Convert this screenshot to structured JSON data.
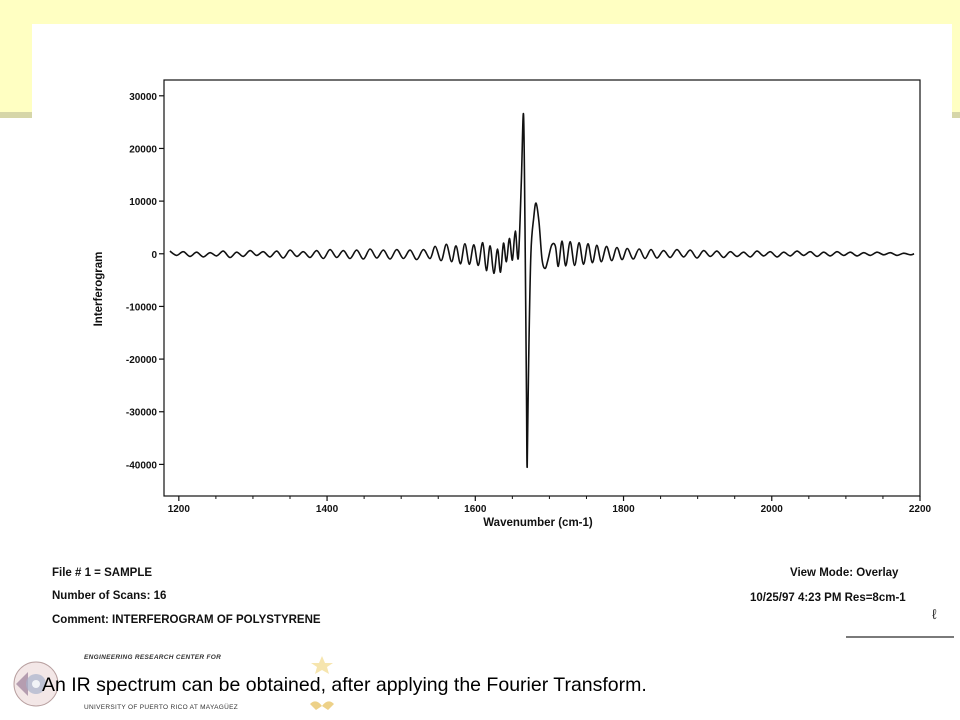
{
  "slide": {
    "caption": "An IR spectrum can be obtained, after applying the Fourier Transform.",
    "footer": {
      "line1": "ENGINEERING RESEARCH CENTER FOR",
      "line2": "UNIVERSITY OF PUERTO RICO AT MAYAGÜEZ"
    },
    "colors": {
      "band": "#ffffc2",
      "band_line": "#d6d6a8"
    }
  },
  "scan_info": {
    "file": "File # 1 = SAMPLE",
    "scans": "Number of Scans: 16",
    "comment": "Comment: INTERFEROGRAM OF POLYSTYRENE",
    "view_mode": "View Mode: Overlay",
    "timestamp": "10/25/97  4:23 PM  Res=8cm-1"
  },
  "chart_data": {
    "type": "line",
    "title": "",
    "xlabel": "Wavenumber (cm-1)",
    "ylabel": "Interferogram",
    "xlim": [
      1180,
      2200
    ],
    "ylim": [
      -46000,
      33000
    ],
    "x_ticks": [
      1200,
      1400,
      1600,
      1800,
      2000,
      2200
    ],
    "x_tick_labels": [
      "1200",
      "1400",
      "1600",
      "1800",
      "2000",
      "2200"
    ],
    "y_ticks": [
      30000,
      20000,
      10000,
      0,
      -10000,
      -20000,
      -30000,
      -40000
    ],
    "y_tick_labels": [
      "30000",
      "20000",
      "10000",
      "0",
      "-10000",
      "-20000",
      "-30000",
      "-40000"
    ],
    "grid": false,
    "series": [
      {
        "name": "",
        "color": "#111111",
        "points": [
          [
            1188,
            500
          ],
          [
            1197,
            -300
          ],
          [
            1206,
            400
          ],
          [
            1215,
            -500
          ],
          [
            1224,
            300
          ],
          [
            1233,
            -600
          ],
          [
            1242,
            200
          ],
          [
            1251,
            -400
          ],
          [
            1260,
            500
          ],
          [
            1269,
            -700
          ],
          [
            1278,
            300
          ],
          [
            1287,
            -500
          ],
          [
            1296,
            600
          ],
          [
            1305,
            -300
          ],
          [
            1314,
            400
          ],
          [
            1323,
            -600
          ],
          [
            1332,
            500
          ],
          [
            1341,
            -800
          ],
          [
            1350,
            700
          ],
          [
            1359,
            -500
          ],
          [
            1368,
            400
          ],
          [
            1377,
            -700
          ],
          [
            1386,
            600
          ],
          [
            1395,
            -900
          ],
          [
            1404,
            800
          ],
          [
            1413,
            -700
          ],
          [
            1422,
            600
          ],
          [
            1431,
            -900
          ],
          [
            1440,
            700
          ],
          [
            1449,
            -1000
          ],
          [
            1458,
            900
          ],
          [
            1467,
            -800
          ],
          [
            1476,
            700
          ],
          [
            1485,
            -1000
          ],
          [
            1494,
            800
          ],
          [
            1503,
            -900
          ],
          [
            1512,
            700
          ],
          [
            1521,
            -1100
          ],
          [
            1530,
            800
          ],
          [
            1539,
            -900
          ],
          [
            1546,
            1400
          ],
          [
            1554,
            -1300
          ],
          [
            1561,
            1800
          ],
          [
            1568,
            -1500
          ],
          [
            1574,
            1500
          ],
          [
            1580,
            -1900
          ],
          [
            1586,
            1900
          ],
          [
            1592,
            -2000
          ],
          [
            1598,
            1700
          ],
          [
            1604,
            -2200
          ],
          [
            1610,
            2100
          ],
          [
            1615,
            -3200
          ],
          [
            1620,
            1500
          ],
          [
            1625,
            -3700
          ],
          [
            1630,
            900
          ],
          [
            1634,
            -3500
          ],
          [
            1638,
            2000
          ],
          [
            1642,
            -1500
          ],
          [
            1646,
            2900
          ],
          [
            1650,
            -1200
          ],
          [
            1654,
            4300
          ],
          [
            1658,
            -800
          ],
          [
            1662,
            13000
          ],
          [
            1665,
            26500
          ],
          [
            1667,
            5000
          ],
          [
            1669,
            -25000
          ],
          [
            1670,
            -40500
          ],
          [
            1672,
            -20000
          ],
          [
            1675,
            0
          ],
          [
            1679,
            7000
          ],
          [
            1682,
            9600
          ],
          [
            1686,
            6000
          ],
          [
            1690,
            -1000
          ],
          [
            1694,
            -2800
          ],
          [
            1698,
            -1200
          ],
          [
            1703,
            1600
          ],
          [
            1708,
            1500
          ],
          [
            1712,
            -2400
          ],
          [
            1717,
            2400
          ],
          [
            1722,
            -2300
          ],
          [
            1728,
            2300
          ],
          [
            1734,
            -2200
          ],
          [
            1740,
            2100
          ],
          [
            1746,
            -2000
          ],
          [
            1752,
            1900
          ],
          [
            1758,
            -1700
          ],
          [
            1764,
            1600
          ],
          [
            1770,
            -1500
          ],
          [
            1777,
            1400
          ],
          [
            1784,
            -1300
          ],
          [
            1791,
            1200
          ],
          [
            1798,
            -1100
          ],
          [
            1805,
            1000
          ],
          [
            1813,
            -1000
          ],
          [
            1821,
            900
          ],
          [
            1829,
            -900
          ],
          [
            1837,
            800
          ],
          [
            1845,
            -800
          ],
          [
            1854,
            600
          ],
          [
            1863,
            -700
          ],
          [
            1872,
            800
          ],
          [
            1881,
            -600
          ],
          [
            1890,
            700
          ],
          [
            1899,
            -800
          ],
          [
            1908,
            600
          ],
          [
            1917,
            -500
          ],
          [
            1926,
            500
          ],
          [
            1935,
            -700
          ],
          [
            1944,
            400
          ],
          [
            1953,
            -500
          ],
          [
            1962,
            300
          ],
          [
            1971,
            -600
          ],
          [
            1980,
            500
          ],
          [
            1989,
            -400
          ],
          [
            1998,
            400
          ],
          [
            2007,
            -600
          ],
          [
            2016,
            300
          ],
          [
            2025,
            -400
          ],
          [
            2034,
            500
          ],
          [
            2043,
            -300
          ],
          [
            2052,
            400
          ],
          [
            2061,
            -500
          ],
          [
            2070,
            300
          ],
          [
            2079,
            -400
          ],
          [
            2088,
            400
          ],
          [
            2097,
            -300
          ],
          [
            2106,
            300
          ],
          [
            2115,
            -400
          ],
          [
            2124,
            200
          ],
          [
            2133,
            -300
          ],
          [
            2142,
            300
          ],
          [
            2151,
            -200
          ],
          [
            2160,
            200
          ],
          [
            2169,
            -300
          ],
          [
            2178,
            100
          ],
          [
            2187,
            -200
          ],
          [
            2192,
            0
          ]
        ]
      }
    ]
  }
}
